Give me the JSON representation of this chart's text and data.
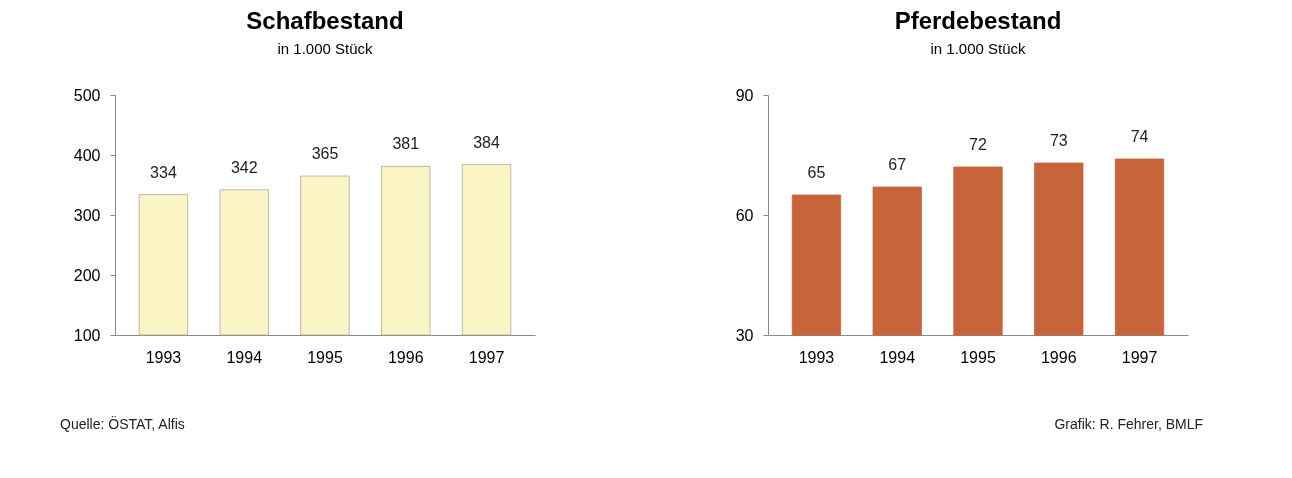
{
  "chart_data": [
    {
      "type": "bar",
      "title": "Schafbestand",
      "subtitle": "in 1.000 Stück",
      "categories": [
        "1993",
        "1994",
        "1995",
        "1996",
        "1997"
      ],
      "values": [
        334,
        342,
        365,
        381,
        384
      ],
      "color": "#fbf5c6",
      "ylim": [
        100,
        500
      ],
      "yticks": [
        100,
        200,
        300,
        400,
        500
      ],
      "data_labels": true,
      "annotations": [
        "Quelle: ÖSTAT, Alfis"
      ]
    },
    {
      "type": "bar",
      "title": "Pferdebestand",
      "subtitle": "in 1.000 Stück",
      "categories": [
        "1993",
        "1994",
        "1995",
        "1996",
        "1997"
      ],
      "values": [
        65,
        67,
        72,
        73,
        74
      ],
      "color": "#c8643a",
      "ylim": [
        30,
        90
      ],
      "yticks": [
        30,
        60,
        90
      ],
      "data_labels": true,
      "annotations": [
        "Grafik: R. Fehrer, BMLF"
      ]
    }
  ]
}
